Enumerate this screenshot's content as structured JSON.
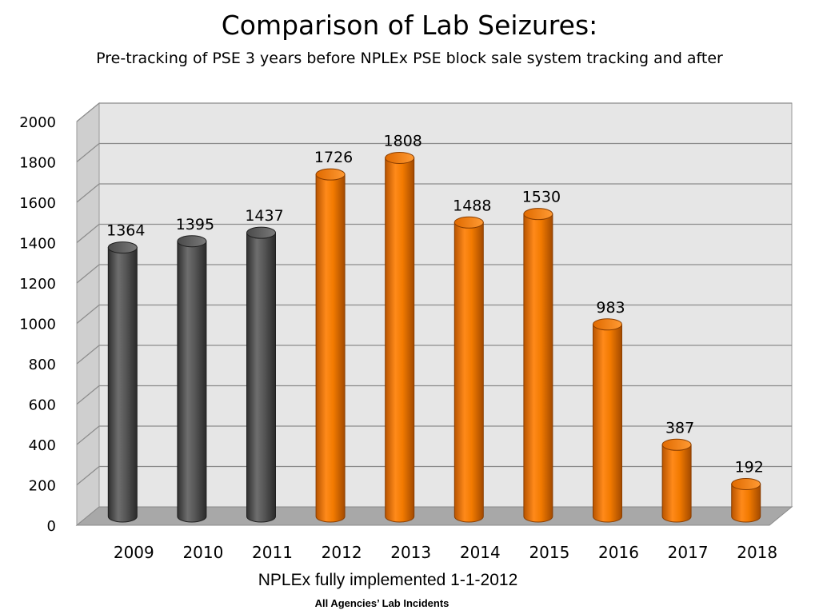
{
  "chart_data": {
    "type": "bar",
    "title": "Comparison of Lab Seizures:",
    "subtitle": "Pre-tracking of PSE 3 years before NPLEx PSE block sale system tracking and after",
    "xlabel": "NPLEx fully implemented 1-1-2012",
    "caption": "All Agencies’ Lab Incidents",
    "categories": [
      "2009",
      "2010",
      "2011",
      "2012",
      "2013",
      "2014",
      "2015",
      "2016",
      "2017",
      "2018"
    ],
    "values": [
      1364,
      1395,
      1437,
      1726,
      1808,
      1488,
      1530,
      983,
      387,
      192
    ],
    "data_labels": [
      "1364",
      "1395",
      "1437",
      "1726",
      "1808",
      "1488",
      "1530",
      "983",
      "387",
      "192"
    ],
    "yticks": [
      "0",
      "200",
      "400",
      "600",
      "800",
      "1000",
      "1200",
      "1400",
      "1600",
      "1800",
      "2000"
    ],
    "ylim": [
      0,
      2000
    ],
    "grid": true,
    "legend": "none",
    "colors": {
      "pre_tracking": "#555555",
      "post_tracking": "#f07800",
      "back_wall": "#e6e6e6",
      "side_wall": "#cfcfcf",
      "floor": "#a8a8a8"
    }
  }
}
